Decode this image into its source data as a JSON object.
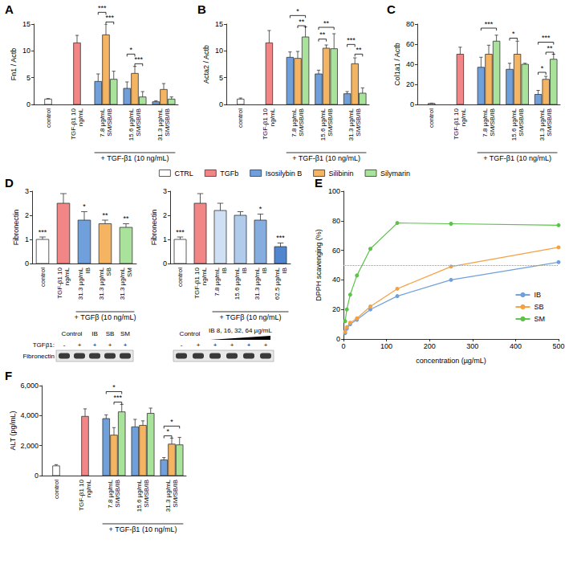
{
  "chart_data": [
    {
      "panel": "A",
      "type": "bar",
      "y_label": "Fn1 / Actb",
      "categories": [
        "control",
        "TGF-β1 10 ng/mL",
        "7.8 µg/mL SM/SB/IB",
        "15.6 µg/mL SM/SB/IB",
        "31.3 µg/mL SM/SB/IB"
      ],
      "group": {
        "label": "+ TGF-β1 (10 ng/mL)",
        "from": "7.8 µg/mL SM/SB/IB",
        "to": "31.3 µg/mL SM/SB/IB"
      },
      "series": [
        {
          "name": "CTRL",
          "color": "#ffffff",
          "values": [
            1.0,
            null,
            null,
            null,
            null
          ],
          "errors": [
            0.1,
            null,
            null,
            null,
            null
          ]
        },
        {
          "name": "TGFb",
          "color": "#f28585",
          "values": [
            null,
            11.5,
            null,
            null,
            null
          ],
          "errors": [
            null,
            1.4,
            null,
            null,
            null
          ]
        },
        {
          "name": "Isosilybin B",
          "color": "#6fa0dc",
          "values": [
            null,
            null,
            4.3,
            3.0,
            0.5
          ],
          "errors": [
            null,
            null,
            1.4,
            1.2,
            0.2
          ]
        },
        {
          "name": "Silibinin",
          "color": "#f5b461",
          "values": [
            null,
            null,
            13.0,
            5.8,
            2.8
          ],
          "errors": [
            null,
            null,
            2.0,
            1.3,
            1.1
          ]
        },
        {
          "name": "Silymarin",
          "color": "#a9e29a",
          "values": [
            null,
            null,
            4.7,
            1.4,
            1.0
          ],
          "errors": [
            null,
            null,
            1.5,
            1.0,
            0.4
          ]
        }
      ],
      "brackets": [
        {
          "category": "7.8 µg/mL SM/SB/IB",
          "from": "Isosilybin B",
          "to": "Silibinin",
          "y": 17.2,
          "label": "***"
        },
        {
          "category": "7.8 µg/mL SM/SB/IB",
          "from": "Silibinin",
          "to": "Silymarin",
          "y": 15.4,
          "label": "***"
        },
        {
          "category": "15.6 µg/mL SM/SB/IB",
          "from": "Isosilybin B",
          "to": "Silibinin",
          "y": 9.4,
          "label": "*"
        },
        {
          "category": "15.6 µg/mL SM/SB/IB",
          "from": "Silibinin",
          "to": "Silymarin",
          "y": 7.6,
          "label": "***"
        }
      ],
      "ylim": [
        0,
        15
      ],
      "yticks": [
        0,
        5,
        10,
        15
      ],
      "grid": false,
      "legend": "bottom"
    },
    {
      "panel": "B",
      "type": "bar",
      "y_label": "Acta2 / Actb",
      "categories": [
        "control",
        "TGF-β1 10 ng/mL",
        "7.8 µg/mL SM/SB/IB",
        "15.6 µg/mL SM/SB/IB",
        "31.3 µg/mL SM/SB/IB"
      ],
      "group": {
        "label": "+ TGF-β1 (10 ng/mL)",
        "from": "7.8 µg/mL SM/SB/IB",
        "to": "31.3 µg/mL SM/SB/IB"
      },
      "series": [
        {
          "name": "CTRL",
          "color": "#ffffff",
          "values": [
            1.0,
            null,
            null,
            null,
            null
          ],
          "errors": [
            0.2,
            null,
            null,
            null,
            null
          ]
        },
        {
          "name": "TGFb",
          "color": "#f28585",
          "values": [
            null,
            11.5,
            null,
            null,
            null
          ],
          "errors": [
            null,
            2.3,
            null,
            null,
            null
          ]
        },
        {
          "name": "Isosilybin B",
          "color": "#6fa0dc",
          "values": [
            null,
            null,
            8.8,
            5.7,
            2.0
          ],
          "errors": [
            null,
            null,
            1.0,
            0.7,
            0.4
          ]
        },
        {
          "name": "Silibinin",
          "color": "#f5b461",
          "values": [
            null,
            null,
            8.6,
            10.5,
            7.6
          ],
          "errors": [
            null,
            null,
            1.3,
            0.6,
            1.1
          ]
        },
        {
          "name": "Silymarin",
          "color": "#a9e29a",
          "values": [
            null,
            null,
            12.6,
            10.4,
            2.1
          ],
          "errors": [
            null,
            null,
            1.9,
            2.8,
            1.0
          ]
        }
      ],
      "brackets": [
        {
          "category": "7.8 µg/mL SM/SB/IB",
          "from": "Isosilybin B",
          "to": "Silymarin",
          "y": 16.6,
          "label": "*"
        },
        {
          "category": "7.8 µg/mL SM/SB/IB",
          "from": "Silibinin",
          "to": "Silymarin",
          "y": 14.7,
          "label": "**"
        },
        {
          "category": "15.6 µg/mL SM/SB/IB",
          "from": "Isosilybin B",
          "to": "Silymarin",
          "y": 14.4,
          "label": "**"
        },
        {
          "category": "15.6 µg/mL SM/SB/IB",
          "from": "Isosilybin B",
          "to": "Silibinin",
          "y": 12.2,
          "label": "**"
        },
        {
          "category": "31.3 µg/mL SM/SB/IB",
          "from": "Isosilybin B",
          "to": "Silibinin",
          "y": 11.2,
          "label": "***"
        },
        {
          "category": "31.3 µg/mL SM/SB/IB",
          "from": "Silibinin",
          "to": "Silymarin",
          "y": 9.4,
          "label": "**"
        }
      ],
      "ylim": [
        0,
        15
      ],
      "yticks": [
        0,
        5,
        10,
        15
      ],
      "grid": false,
      "legend": "bottom"
    },
    {
      "panel": "C",
      "type": "bar",
      "y_label": "Col1a1 / Actb",
      "categories": [
        "control",
        "TGF-β1 10 ng/mL",
        "7.8 µg/mL SM/SB/IB",
        "15.6 µg/mL SM/SB/IB",
        "31.3 µg/mL SM/SB/IB"
      ],
      "group": {
        "label": "+ TGF-β1 (10 ng/mL)",
        "from": "7.8 µg/mL SM/SB/IB",
        "to": "31.3 µg/mL SM/SB/IB"
      },
      "series": [
        {
          "name": "CTRL",
          "color": "#ffffff",
          "values": [
            1.0,
            null,
            null,
            null,
            null
          ],
          "errors": [
            0.3,
            null,
            null,
            null,
            null
          ]
        },
        {
          "name": "TGFb",
          "color": "#f28585",
          "values": [
            null,
            50,
            null,
            null,
            null
          ],
          "errors": [
            null,
            7,
            null,
            null,
            null
          ]
        },
        {
          "name": "Isosilybin B",
          "color": "#6fa0dc",
          "values": [
            null,
            null,
            37,
            35,
            10
          ],
          "errors": [
            null,
            null,
            10,
            6,
            4
          ]
        },
        {
          "name": "Silibinin",
          "color": "#f5b461",
          "values": [
            null,
            null,
            50,
            50,
            25
          ],
          "errors": [
            null,
            null,
            9,
            13,
            3
          ]
        },
        {
          "name": "Silymarin",
          "color": "#a9e29a",
          "values": [
            null,
            null,
            63,
            40,
            45
          ],
          "errors": [
            null,
            null,
            6,
            1,
            5
          ]
        }
      ],
      "brackets": [
        {
          "category": "7.8 µg/mL SM/SB/IB",
          "from": "Isosilybin B",
          "to": "Silymarin",
          "y": 76,
          "label": "***"
        },
        {
          "category": "15.6 µg/mL SM/SB/IB",
          "from": "Isosilybin B",
          "to": "Silibinin",
          "y": 66,
          "label": "*"
        },
        {
          "category": "31.3 µg/mL SM/SB/IB",
          "from": "Isosilybin B",
          "to": "Silymarin",
          "y": 62,
          "label": "***"
        },
        {
          "category": "31.3 µg/mL SM/SB/IB",
          "from": "Silibinin",
          "to": "Silymarin",
          "y": 52,
          "label": "**"
        },
        {
          "category": "31.3 µg/mL SM/SB/IB",
          "from": "Isosilybin B",
          "to": "Silibinin",
          "y": 32,
          "label": "*"
        }
      ],
      "ylim": [
        0,
        80
      ],
      "yticks": [
        0,
        20,
        40,
        60,
        80
      ],
      "grid": false,
      "legend": "bottom"
    },
    {
      "panel": "D",
      "type": "bar",
      "y_label": "Fibronectin",
      "categories": [
        "control",
        "TGF-β1 10 ng/mL",
        "31.3 µg/mL IB",
        "31.3 µg/mL SB",
        "31.3 µg/mL SM"
      ],
      "group": {
        "label": "+ TGFβ (10 ng/mL)",
        "from": "31.3 µg/mL IB",
        "to": "31.3 µg/mL SM"
      },
      "values": [
        1.0,
        2.5,
        1.8,
        1.65,
        1.5
      ],
      "errors": [
        0.1,
        0.4,
        0.35,
        0.15,
        0.15
      ],
      "colors": [
        "#ffffff",
        "#f28585",
        "#6fa0dc",
        "#f5b461",
        "#a9e29a"
      ],
      "stars": [
        "***",
        null,
        "*",
        "**",
        "**"
      ],
      "ylim": [
        0,
        3
      ],
      "yticks": [
        0,
        1,
        2,
        3
      ],
      "grid": false
    },
    {
      "panel": "D",
      "type": "bar",
      "y_label": "Fibronectin",
      "categories": [
        "control",
        "TGF-β1 10 ng/mL",
        "7.8 µg/mL IB",
        "15.6 µg/mL IB",
        "31.3 µg/mL IB",
        "62.5 µg/mL IB"
      ],
      "group": {
        "label": "+ TGFβ (10 ng/mL)",
        "from": "7.8 µg/mL IB",
        "to": "62.5 µg/mL IB"
      },
      "values": [
        1.0,
        2.5,
        2.2,
        2.0,
        1.8,
        0.7
      ],
      "errors": [
        0.1,
        0.4,
        0.3,
        0.15,
        0.25,
        0.15
      ],
      "colors": [
        "#ffffff",
        "#f28585",
        "#d0e0f4",
        "#b0cbec",
        "#86addf",
        "#4f86cf"
      ],
      "stars": [
        "***",
        null,
        null,
        null,
        "*",
        "***"
      ],
      "ylim": [
        0,
        3
      ],
      "yticks": [
        0,
        1,
        2,
        3
      ],
      "grid": false
    },
    {
      "panel": "E",
      "type": "line",
      "x_label": "concentration (µg/mL)",
      "y_label": "DPPH scavenging (%)",
      "x": [
        3.9,
        7.8,
        15.6,
        31.3,
        62.5,
        125,
        250,
        500
      ],
      "series": [
        {
          "name": "IB",
          "color": "#6fa0dc",
          "marker": "circle",
          "line_style": "solid",
          "values": [
            4,
            7,
            10,
            13,
            20,
            29,
            40,
            52
          ]
        },
        {
          "name": "SB",
          "color": "#f5a142",
          "marker": "circle",
          "line_style": "solid",
          "values": [
            5,
            8,
            11,
            14,
            22,
            34,
            49,
            62
          ]
        },
        {
          "name": "SM",
          "color": "#5cc24a",
          "marker": "circle",
          "line_style": "solid",
          "values": [
            12,
            20,
            30,
            43,
            61,
            78.5,
            78,
            77
          ]
        }
      ],
      "reference_line": 50,
      "xlim": [
        0,
        500
      ],
      "xticks": [
        0,
        100,
        200,
        300,
        400,
        500
      ],
      "ylim": [
        0,
        100
      ],
      "yticks": [
        0,
        20,
        40,
        60,
        80,
        100
      ],
      "grid": false,
      "legend": "right"
    },
    {
      "panel": "F",
      "type": "bar",
      "y_label": "ALT (pg/mL)",
      "categories": [
        "control",
        "TGF-β1 10 ng/mL",
        "7.8 µg/mL SM/SB/IB",
        "15.6 µg/mL SM/SB/IB",
        "31.3 µg/mL SM/SB/IB"
      ],
      "group": {
        "label": "+ TGF-β1 (10 ng/mL)",
        "from": "7.8 µg/mL SM/SB/IB",
        "to": "31.3 µg/mL SM/SB/IB"
      },
      "series": [
        {
          "name": "CTRL",
          "color": "#ffffff",
          "values": [
            650,
            null,
            null,
            null,
            null
          ],
          "errors": [
            80,
            null,
            null,
            null,
            null
          ]
        },
        {
          "name": "TGFb",
          "color": "#f28585",
          "values": [
            null,
            3950,
            null,
            null,
            null
          ],
          "errors": [
            null,
            500,
            null,
            null,
            null
          ]
        },
        {
          "name": "Isosilybin B",
          "color": "#6fa0dc",
          "values": [
            null,
            null,
            3800,
            3250,
            1050
          ],
          "errors": [
            null,
            null,
            250,
            500,
            150
          ]
        },
        {
          "name": "Silibinin",
          "color": "#f5b461",
          "values": [
            null,
            null,
            2700,
            3350,
            2100
          ],
          "errors": [
            null,
            null,
            500,
            300,
            400
          ]
        },
        {
          "name": "Silymarin",
          "color": "#a9e29a",
          "values": [
            null,
            null,
            4250,
            4150,
            2050
          ],
          "errors": [
            null,
            null,
            500,
            350,
            500
          ]
        }
      ],
      "brackets": [
        {
          "category": "7.8 µg/mL SM/SB/IB",
          "from": "Isosilybin B",
          "to": "Silymarin",
          "y": 5600,
          "label": "*"
        },
        {
          "category": "7.8 µg/mL SM/SB/IB",
          "from": "Silibinin",
          "to": "Silymarin",
          "y": 4900,
          "label": "***"
        },
        {
          "category": "31.3 µg/mL SM/SB/IB",
          "from": "Isosilybin B",
          "to": "Silymarin",
          "y": 3300,
          "label": "*"
        },
        {
          "category": "31.3 µg/mL SM/SB/IB",
          "from": "Isosilybin B",
          "to": "Silibinin",
          "y": 2650,
          "label": "*"
        }
      ],
      "ylim": [
        0,
        6000
      ],
      "yticks": [
        0,
        2000,
        4000,
        6000
      ],
      "grid": false,
      "legend": "bottom"
    }
  ],
  "blot": {
    "protein": "Fibronectin",
    "treatment_label": "TGFβ1:",
    "left": {
      "control_label": "Control",
      "compound_labels": [
        "IB",
        "SB",
        "SM"
      ],
      "tgf": [
        "-",
        "+",
        "+",
        "+",
        "+"
      ]
    },
    "right": {
      "control_label": "Control",
      "dose_label": "IB 8, 16, 32, 64 µg/mL",
      "tgf": [
        "-",
        "+",
        "+",
        "+",
        "+",
        "+"
      ]
    }
  }
}
